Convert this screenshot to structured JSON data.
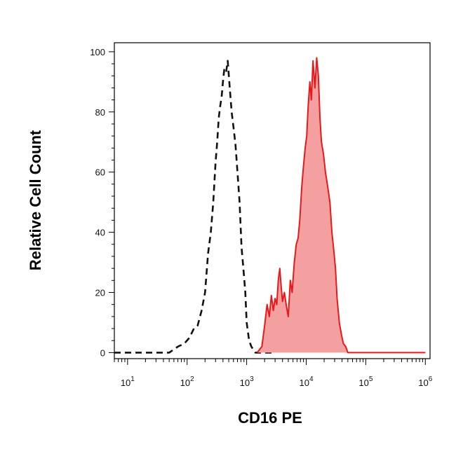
{
  "chart_data": {
    "type": "area",
    "xlabel": "CD16 PE",
    "ylabel": "Relative Cell Count",
    "x_scale": "log",
    "xlim": [
      6,
      1200000
    ],
    "ylim": [
      -2,
      103
    ],
    "x_ticks": [
      {
        "value": 10,
        "base": "10",
        "exp": "1"
      },
      {
        "value": 100,
        "base": "10",
        "exp": "2"
      },
      {
        "value": 1000,
        "base": "10",
        "exp": "3"
      },
      {
        "value": 10000,
        "base": "10",
        "exp": "4"
      },
      {
        "value": 100000,
        "base": "10",
        "exp": "5"
      },
      {
        "value": 1000000,
        "base": "10",
        "exp": "6"
      }
    ],
    "y_ticks": [
      0,
      20,
      40,
      60,
      80,
      100
    ],
    "grid": false,
    "colors": {
      "stained": "#e8191a",
      "stained_fill": "#f4a0a0",
      "control": "#111111"
    },
    "series": [
      {
        "style": "dashed-black-outline",
        "x": [
          6,
          20,
          35,
          50,
          70,
          90,
          110,
          130,
          150,
          175,
          200,
          225,
          250,
          275,
          300,
          320,
          340,
          360,
          380,
          400,
          420,
          450,
          480,
          520,
          560,
          600,
          650,
          700,
          760,
          820,
          880,
          950,
          1000,
          1100,
          1200,
          1400,
          1800,
          3000
        ],
        "y": [
          0,
          0,
          0,
          0,
          2,
          3,
          5,
          8,
          9,
          14,
          20,
          33,
          40,
          50,
          63,
          70,
          78,
          82,
          85,
          90,
          94,
          93,
          97,
          88,
          80,
          75,
          69,
          60,
          50,
          35,
          28,
          20,
          10,
          4,
          2,
          0,
          0,
          0
        ]
      },
      {
        "style": "red-filled",
        "x": [
          1500,
          1800,
          2000,
          2200,
          2400,
          2600,
          2800,
          3000,
          3200,
          3400,
          3600,
          3800,
          4000,
          4300,
          4600,
          5000,
          5400,
          5800,
          6300,
          6800,
          7300,
          7800,
          8400,
          9000,
          9600,
          10200,
          10800,
          11500,
          12200,
          13000,
          14000,
          15000,
          16000,
          17000,
          18000,
          19500,
          21000,
          23000,
          25000,
          27000,
          29000,
          31000,
          33000,
          36000,
          39000,
          42000,
          46000,
          50000,
          60000,
          100000,
          1000000
        ],
        "y": [
          0,
          2,
          9,
          16,
          12,
          19,
          14,
          18,
          16,
          24,
          28,
          22,
          17,
          20,
          16,
          12,
          24,
          20,
          30,
          36,
          38,
          44,
          55,
          62,
          68,
          72,
          82,
          90,
          84,
          97,
          88,
          98,
          92,
          78,
          70,
          66,
          60,
          55,
          50,
          40,
          34,
          28,
          18,
          10,
          6,
          3,
          2,
          0,
          0,
          0,
          0
        ]
      }
    ]
  }
}
